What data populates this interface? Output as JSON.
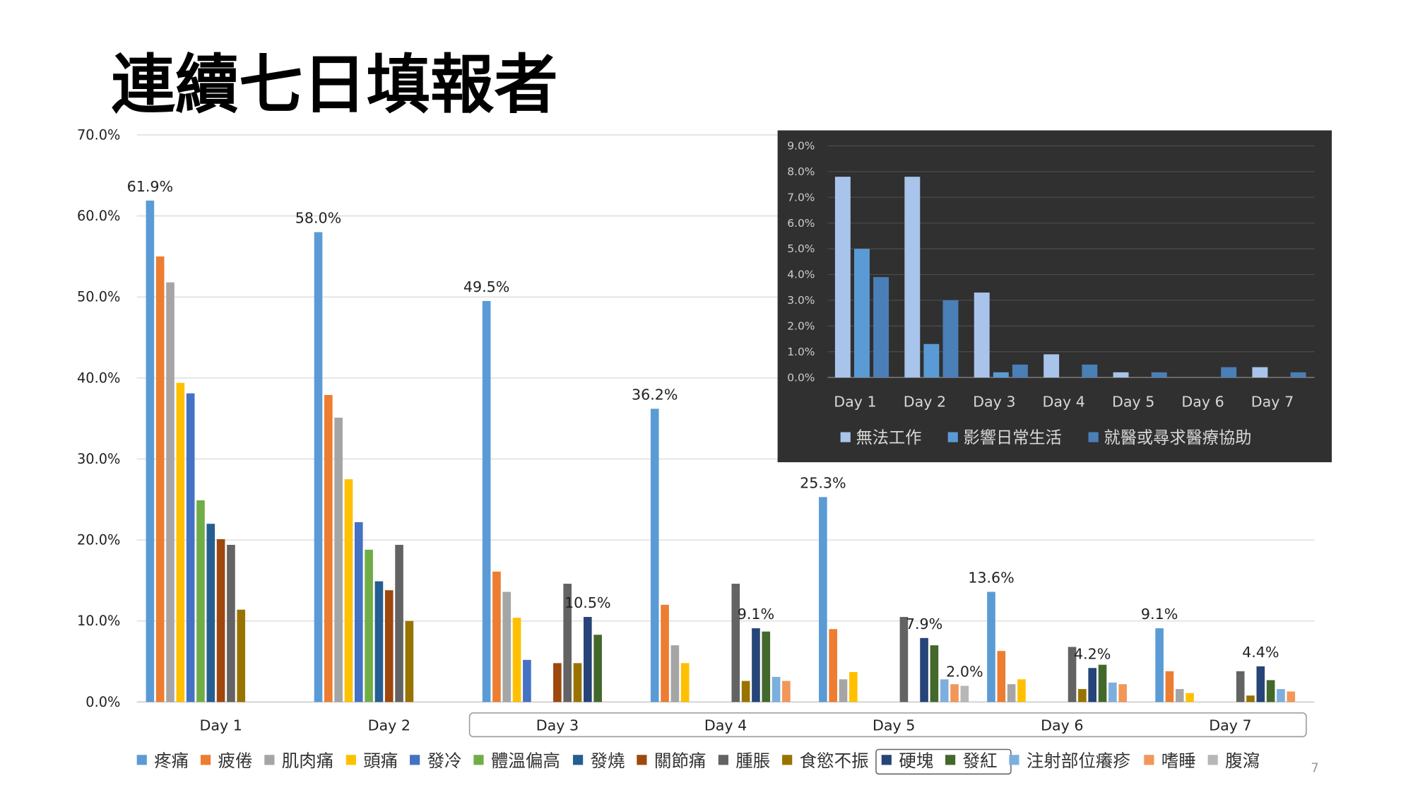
{
  "slide": {
    "title": "連續七日填報者",
    "page_number": "7"
  },
  "chart_data": [
    {
      "type": "bar",
      "title": "連續七日填報者",
      "categories": [
        "Day 1",
        "Day 2",
        "Day 3",
        "Day 4",
        "Day 5",
        "Day 6",
        "Day 7"
      ],
      "ylim": [
        0,
        70
      ],
      "yticks": [
        "0.0%",
        "10.0%",
        "20.0%",
        "30.0%",
        "40.0%",
        "50.0%",
        "60.0%",
        "70.0%"
      ],
      "grid": true,
      "legend_position": "bottom",
      "series": [
        {
          "name": "疼痛",
          "color": "#5B9BD5",
          "values": [
            61.9,
            58.0,
            49.5,
            36.2,
            25.3,
            13.6,
            9.1
          ]
        },
        {
          "name": "疲倦",
          "color": "#ED7D31",
          "values": [
            55.0,
            37.9,
            16.1,
            12.0,
            9.0,
            6.3,
            3.8
          ]
        },
        {
          "name": "肌肉痛",
          "color": "#A5A5A5",
          "values": [
            51.8,
            35.1,
            13.6,
            7.0,
            2.8,
            2.2,
            1.6
          ]
        },
        {
          "name": "頭痛",
          "color": "#FFC000",
          "values": [
            39.4,
            27.5,
            10.4,
            4.8,
            3.7,
            2.8,
            1.1
          ]
        },
        {
          "name": "發冷",
          "color": "#4472C4",
          "values": [
            38.1,
            22.2,
            5.2,
            0,
            0,
            0,
            0
          ]
        },
        {
          "name": "體溫偏高",
          "color": "#70AD47",
          "values": [
            24.9,
            18.8,
            0,
            0,
            0,
            0,
            0
          ]
        },
        {
          "name": "發燒",
          "color": "#255E91",
          "values": [
            22.0,
            14.9,
            0,
            0,
            0,
            0,
            0
          ]
        },
        {
          "name": "關節痛",
          "color": "#9E480E",
          "values": [
            20.1,
            13.8,
            4.8,
            0,
            0,
            0,
            0
          ]
        },
        {
          "name": "腫脹",
          "color": "#636363",
          "values": [
            19.4,
            19.4,
            14.6,
            14.6,
            10.5,
            6.8,
            3.8
          ]
        },
        {
          "name": "食慾不振",
          "color": "#997300",
          "values": [
            11.4,
            10.0,
            4.8,
            2.6,
            0,
            1.6,
            0.8
          ]
        },
        {
          "name": "硬塊",
          "color": "#264478",
          "values": [
            0,
            0,
            10.5,
            9.1,
            7.9,
            4.2,
            4.4
          ]
        },
        {
          "name": "發紅",
          "color": "#43682B",
          "values": [
            0,
            0,
            8.3,
            8.7,
            7.0,
            4.6,
            2.7
          ]
        },
        {
          "name": "注射部位癢疹",
          "color": "#7CAFDD",
          "values": [
            0,
            0,
            0,
            3.1,
            2.8,
            2.4,
            1.6
          ]
        },
        {
          "name": "嗜睡",
          "color": "#F1975A",
          "values": [
            0,
            0,
            0,
            2.6,
            2.2,
            2.2,
            1.3
          ]
        },
        {
          "name": "腹瀉",
          "color": "#B7B7B7",
          "values": [
            0,
            0,
            0,
            0,
            2.0,
            0,
            0
          ]
        }
      ],
      "data_labels": [
        {
          "day": 0,
          "series": 0,
          "text": "61.9%"
        },
        {
          "day": 1,
          "series": 0,
          "text": "58.0%"
        },
        {
          "day": 2,
          "series": 0,
          "text": "49.5%"
        },
        {
          "day": 3,
          "series": 0,
          "text": "36.2%"
        },
        {
          "day": 4,
          "series": 0,
          "text": "25.3%"
        },
        {
          "day": 5,
          "series": 0,
          "text": "13.6%"
        },
        {
          "day": 6,
          "series": 0,
          "text": "9.1%"
        },
        {
          "day": 2,
          "series": 10,
          "text": "10.5%"
        },
        {
          "day": 3,
          "series": 10,
          "text": "9.1%"
        },
        {
          "day": 4,
          "series": 10,
          "text": "7.9%"
        },
        {
          "day": 4,
          "series": 14,
          "text": "2.0%"
        },
        {
          "day": 5,
          "series": 10,
          "text": "4.2%"
        },
        {
          "day": 6,
          "series": 10,
          "text": "4.4%"
        }
      ]
    },
    {
      "type": "bar",
      "categories": [
        "Day 1",
        "Day 2",
        "Day 3",
        "Day 4",
        "Day 5",
        "Day 6",
        "Day 7"
      ],
      "ylim": [
        0,
        9
      ],
      "yticks": [
        "0.0%",
        "1.0%",
        "2.0%",
        "3.0%",
        "4.0%",
        "5.0%",
        "6.0%",
        "7.0%",
        "8.0%",
        "9.0%"
      ],
      "grid": true,
      "legend_position": "bottom",
      "series": [
        {
          "name": "無法工作",
          "color": "#A9C4EB",
          "values": [
            7.8,
            7.8,
            3.3,
            0.9,
            0.2,
            0,
            0.4
          ]
        },
        {
          "name": "影響日常生活",
          "color": "#5B9BD5",
          "values": [
            5.0,
            1.3,
            0.2,
            0,
            0,
            0,
            0
          ]
        },
        {
          "name": "就醫或尋求醫療協助",
          "color": "#4A7FB8",
          "values": [
            3.9,
            3.0,
            0.5,
            0.5,
            0.2,
            0.4,
            0.2
          ]
        }
      ]
    }
  ]
}
